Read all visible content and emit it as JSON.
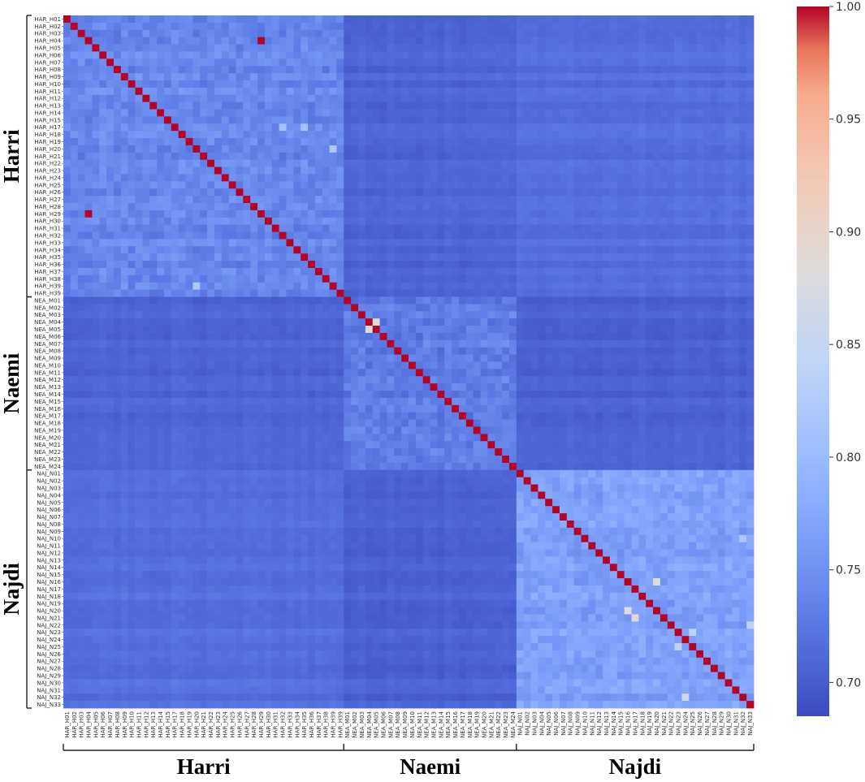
{
  "chart_data": {
    "type": "heatmap",
    "title": "",
    "groups": [
      {
        "name": "Harri",
        "prefix": "HAR_H",
        "count": 39
      },
      {
        "name": "Naemi",
        "prefix": "NEA_M",
        "count": 24
      },
      {
        "name": "Najdi",
        "prefix": "NAJ_N",
        "count": 33
      }
    ],
    "row_labels": [
      "HAR_H01",
      "HAR_H02",
      "HAR_H03",
      "HAR_H04",
      "HAR_H05",
      "HAR_H06",
      "HAR_H07",
      "HAR_H08",
      "HAR_H09",
      "HAR_H10",
      "HAR_H11",
      "HAR_H12",
      "HAR_H13",
      "HAR_H14",
      "HAR_H15",
      "HAR_H17",
      "HAR_H18",
      "HAR_H19",
      "HAR_H20",
      "HAR_H21",
      "HAR_H22",
      "HAR_H23",
      "HAR_H24",
      "HAR_H25",
      "HAR_H26",
      "HAR_H27",
      "HAR_H28",
      "HAR_H29",
      "HAR_H30",
      "HAR_H31",
      "HAR_H32",
      "HAR_H33",
      "HAR_H34",
      "HAR_H35",
      "HAR_H36",
      "HAR_H37",
      "HAR_H38",
      "HAR_H39",
      "HAR_H39",
      "NEA_M01",
      "NEA_M02",
      "NEA_M03",
      "NEA_M04",
      "NEA_M05",
      "NEA_M06",
      "NEA_M07",
      "NEA_M08",
      "NEA_M09",
      "NEA_M10",
      "NEA_M11",
      "NEA_M12",
      "NEA_M13",
      "NEA_M14",
      "NEA_M15",
      "NEA_M16",
      "NEA_M17",
      "NEA_M18",
      "NEA_M19",
      "NEA_M20",
      "NEA_M21",
      "NEA_M22",
      "NEA_M23",
      "NEA_M24",
      "NAJ_N01",
      "NAJ_N02",
      "NAJ_N03",
      "NAJ_N04",
      "NAJ_N05",
      "NAJ_N06",
      "NAJ_N07",
      "NAJ_N08",
      "NAJ_N09",
      "NAJ_N10",
      "NAJ_N11",
      "NAJ_N12",
      "NAJ_N13",
      "NAJ_N14",
      "NAJ_N15",
      "NAJ_N16",
      "NAJ_N17",
      "NAJ_N18",
      "NAJ_N19",
      "NAJ_N20",
      "NAJ_N21",
      "NAJ_N22",
      "NAJ_N23",
      "NAJ_N24",
      "NAJ_N25",
      "NAJ_N26",
      "NAJ_N27",
      "NAJ_N28",
      "NAJ_N29",
      "NAJ_N30",
      "NAJ_N31",
      "NAJ_N32",
      "NAJ_N33"
    ],
    "col_labels": [
      "HAR_H01",
      "HAR_H02",
      "HAR_H03",
      "HAR_H04",
      "HAR_H05",
      "HAR_H06",
      "HAR_H07",
      "HAR_H08",
      "HAR_H09",
      "HAR_H10",
      "HAR_H11",
      "HAR_H12",
      "HAR_H13",
      "HAR_H14",
      "HAR_H15",
      "HAR_H17",
      "HAR_H18",
      "HAR_H19",
      "HAR_H20",
      "HAR_H21",
      "HAR_H22",
      "HAR_H23",
      "HAR_H24",
      "HAR_H25",
      "HAR_H26",
      "HAR_H27",
      "HAR_H28",
      "HAR_H29",
      "HAR_H30",
      "HAR_H31",
      "HAR_H32",
      "HAR_H33",
      "HAR_H34",
      "HAR_H35",
      "HAR_H36",
      "HAR_H37",
      "HAR_H38",
      "HAR_H39",
      "HAR_H39",
      "NEA_M01",
      "NEA_M02",
      "NEA_M03",
      "NEA_M04",
      "NEA_M05",
      "NEA_M06",
      "NEA_M07",
      "NEA_M08",
      "NEA_M09",
      "NEA_M10",
      "NEA_M11",
      "NEA_M12",
      "NEA_M13",
      "NEA_M14",
      "NEA_M15",
      "NEA_M16",
      "NEA_M17",
      "NEA_M18",
      "NEA_M19",
      "NEA_M20",
      "NEA_M21",
      "NEA_M22",
      "NEA_M23",
      "NEA_M24",
      "NAJ_N01",
      "NAJ_N02",
      "NAJ_N03",
      "NAJ_N04",
      "NAJ_N05",
      "NAJ_N06",
      "NAJ_N07",
      "NAJ_N08",
      "NAJ_N09",
      "NAJ_N10",
      "NAJ_N11",
      "NAJ_N12",
      "NAJ_N13",
      "NAJ_N14",
      "NAJ_N15",
      "NAJ_N16",
      "NAJ_N17",
      "NAJ_N18",
      "NAJ_N19",
      "NAJ_N20",
      "NAJ_N21",
      "NAJ_N22",
      "NAJ_N23",
      "NAJ_N24",
      "NAJ_N25",
      "NAJ_N26",
      "NAJ_N27",
      "NAJ_N28",
      "NAJ_N29",
      "NAJ_N30",
      "NAJ_N31",
      "NAJ_N32",
      "NAJ_N33"
    ],
    "block_base_values": [
      [
        0.74,
        0.708,
        0.718
      ],
      [
        0.708,
        0.73,
        0.705
      ],
      [
        0.718,
        0.705,
        0.768
      ]
    ],
    "diagonal_value": 1.0,
    "notable_cells": [
      {
        "row": "HAR_H04",
        "col": "HAR_H29",
        "value": 1.0
      },
      {
        "row": "HAR_H29",
        "col": "HAR_H04",
        "value": 1.0
      },
      {
        "row": "HAR_H17",
        "col": "HAR_H32",
        "value": 0.81
      },
      {
        "row": "HAR_H17",
        "col": "HAR_H35",
        "value": 0.81
      },
      {
        "row": "HAR_H20",
        "col": "HAR_H39",
        "value": 0.82
      },
      {
        "row": "HAR_H39",
        "col": "HAR_H20",
        "value": 0.82
      },
      {
        "row": "NEA_M04",
        "col": "NEA_M05",
        "value": 0.88
      },
      {
        "row": "NEA_M05",
        "col": "NEA_M04",
        "value": 0.88
      },
      {
        "row": "NAJ_N16",
        "col": "NAJ_N20",
        "value": 0.88
      },
      {
        "row": "NAJ_N20",
        "col": "NAJ_N16",
        "value": 0.88
      },
      {
        "row": "NAJ_N21",
        "col": "NAJ_N17",
        "value": 0.89
      },
      {
        "row": "NAJ_N23",
        "col": "NAJ_N25",
        "value": 0.84
      },
      {
        "row": "NAJ_N25",
        "col": "NAJ_N23",
        "value": 0.84
      },
      {
        "row": "NAJ_N32",
        "col": "NAJ_N24",
        "value": 0.86
      },
      {
        "row": "NAJ_N10",
        "col": "NAJ_N32",
        "value": 0.82
      },
      {
        "row": "NAJ_N22",
        "col": "NAJ_N33",
        "value": 0.84
      }
    ],
    "colorbar": {
      "min": 0.685,
      "max": 1.0,
      "ticks": [
        "1.00",
        "0.95",
        "0.90",
        "0.85",
        "0.80",
        "0.75",
        "0.70"
      ],
      "colormap": "coolwarm"
    },
    "legend": "none",
    "grid": false
  }
}
